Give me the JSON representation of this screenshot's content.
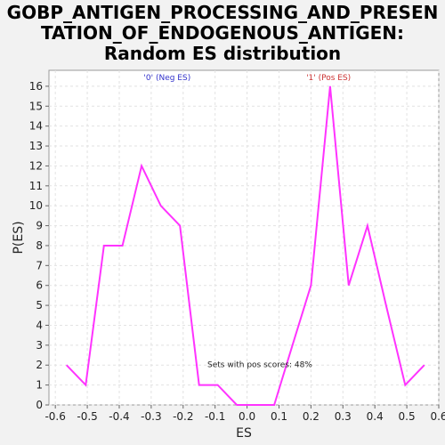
{
  "chart_data": {
    "type": "line",
    "title_lines": [
      "GOBP_ANTIGEN_PROCESSING_AND_PRESEN",
      "TATION_OF_ENDOGENOUS_ANTIGEN:",
      "Random ES distribution"
    ],
    "xlabel": "ES",
    "ylabel": "P(ES)",
    "xlim": [
      -0.62,
      0.6
    ],
    "ylim": [
      0,
      16.8
    ],
    "xticks": [
      "-0.6",
      "-0.5",
      "-0.4",
      "-0.3",
      "-0.2",
      "-0.1",
      "0.0",
      "0.1",
      "0.2",
      "0.3",
      "0.4",
      "0.5",
      "0.6"
    ],
    "xtick_values": [
      -0.6,
      -0.5,
      -0.4,
      -0.3,
      -0.2,
      -0.1,
      0.0,
      0.1,
      0.2,
      0.3,
      0.4,
      0.5,
      0.6
    ],
    "yticks": [
      0,
      1,
      2,
      3,
      4,
      5,
      6,
      7,
      8,
      9,
      10,
      11,
      12,
      13,
      14,
      15,
      16
    ],
    "grid": true,
    "series": [
      {
        "color": "#ff33ff",
        "x": [
          -0.565,
          -0.505,
          -0.448,
          -0.39,
          -0.33,
          -0.27,
          -0.21,
          -0.15,
          -0.092,
          -0.032,
          0.025,
          0.085,
          0.142,
          0.2,
          0.26,
          0.318,
          0.377,
          0.435,
          0.495,
          0.555
        ],
        "y": [
          2,
          1,
          8,
          8,
          12,
          10,
          9,
          1,
          1,
          0,
          0,
          0,
          3,
          6,
          16,
          6,
          9,
          5,
          1,
          2
        ]
      }
    ],
    "annotations": [
      {
        "text": "'0' (Neg ES)",
        "color": "#3333cc",
        "x": -0.25,
        "y": 16.3
      },
      {
        "text": "'1' (Pos ES)",
        "color": "#cc3333",
        "x": 0.255,
        "y": 16.3
      },
      {
        "text": "Sets with pos scores: 48%",
        "color": "#222222",
        "x": 0.04,
        "y": 1.9
      }
    ]
  }
}
